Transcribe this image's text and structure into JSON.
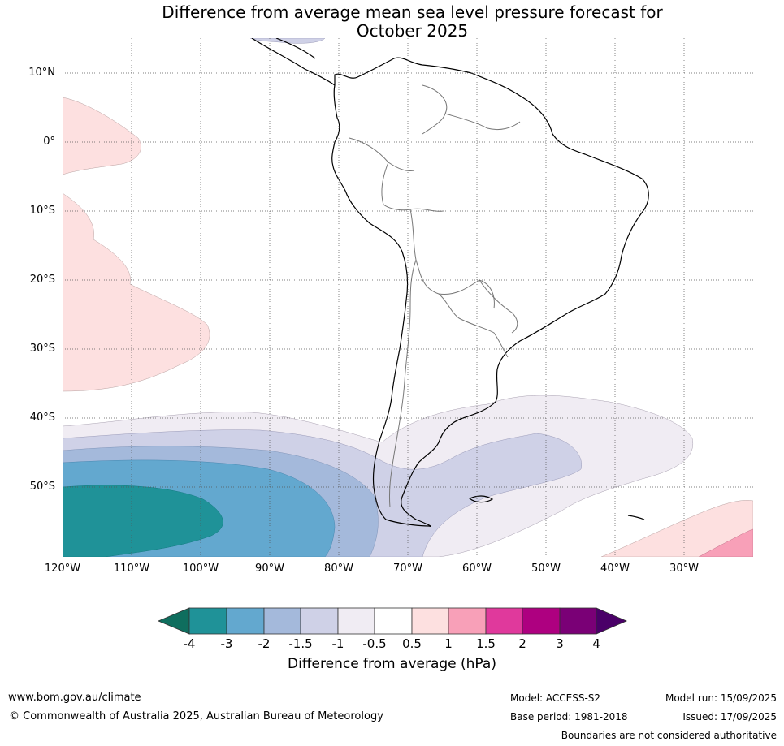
{
  "title_line1": "Difference from average mean sea level pressure forecast for",
  "title_line2": "October 2025",
  "lat_labels": [
    "10°N",
    "0°",
    "10°S",
    "20°S",
    "30°S",
    "40°S",
    "50°S"
  ],
  "lon_labels": [
    "120°W",
    "110°W",
    "100°W",
    "90°W",
    "80°W",
    "70°W",
    "60°W",
    "50°W",
    "40°W",
    "30°W"
  ],
  "colorbar": {
    "title": "Difference from average (hPa)",
    "tick_labels": [
      "-4",
      "-3",
      "-2",
      "-1.5",
      "-1",
      "-0.5",
      "0.5",
      "1",
      "1.5",
      "2",
      "3",
      "4"
    ],
    "colors": [
      "#0f6e5e",
      "#1f9298",
      "#63a8cf",
      "#a4b9db",
      "#cfd1e7",
      "#f0ecf3",
      "#ffffff",
      "#fde0e0",
      "#f8a0b8",
      "#e0399c",
      "#ae0080",
      "#7a0076",
      "#4a0068"
    ]
  },
  "footer": {
    "website": "www.bom.gov.au/climate",
    "copyright": "© Commonwealth of Australia 2025, Australian Bureau of Meteorology",
    "model": "Model: ACCESS-S2",
    "base_period": "Base period: 1981-2018",
    "model_run": "Model run: 15/09/2025",
    "issued": "Issued: 17/09/2025",
    "disclaimer": "Boundaries are not considered authoritative"
  }
}
